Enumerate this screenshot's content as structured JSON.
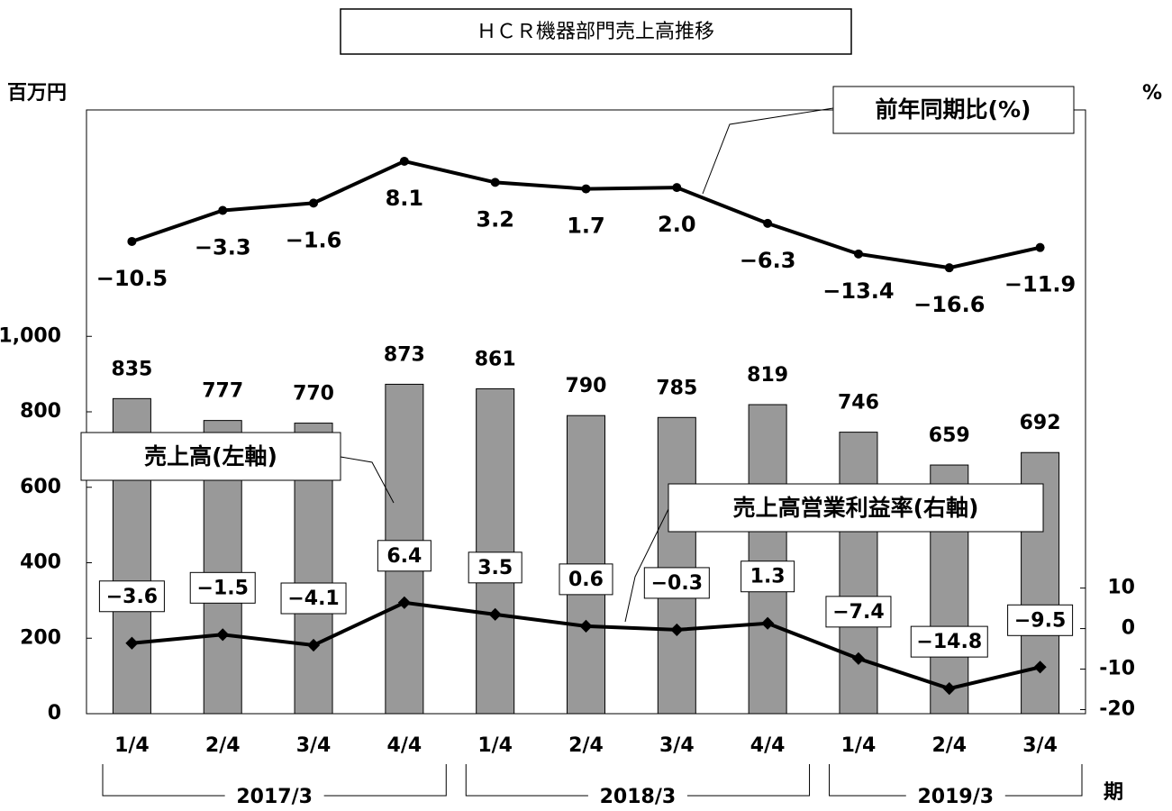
{
  "chart_data": {
    "type": "bar-line",
    "title": "ＨＣＲ機器部門売上高推移",
    "y_label": "百万円",
    "y2_label": "%",
    "x_label": "期",
    "categories": [
      "1/4",
      "2/4",
      "3/4",
      "4/4",
      "1/4",
      "2/4",
      "3/4",
      "4/4",
      "1/4",
      "2/4",
      "3/4"
    ],
    "groups": [
      {
        "label": "2017/3",
        "count": 4
      },
      {
        "label": "2018/3",
        "count": 4
      },
      {
        "label": "2019/3",
        "count": 3
      }
    ],
    "series": [
      {
        "name": "売上高(左軸)",
        "type": "bar",
        "color": "#999999",
        "axis": "y",
        "values": [
          835,
          777,
          770,
          873,
          861,
          790,
          785,
          819,
          746,
          659,
          692
        ]
      },
      {
        "name": "前年同期比(%)",
        "type": "line",
        "color": "#000000",
        "axis": "y3",
        "values": [
          -10.5,
          -3.3,
          -1.6,
          8.1,
          3.2,
          1.7,
          2.0,
          -6.3,
          -13.4,
          -16.6,
          -11.9
        ],
        "value_labels": [
          "−10.5",
          "−3.3",
          "−1.6",
          "8.1",
          "3.2",
          "1.7",
          "2.0",
          "−6.3",
          "−13.4",
          "−16.6",
          "−11.9"
        ]
      },
      {
        "name": "売上高営業利益率(右軸)",
        "type": "line",
        "color": "#000000",
        "axis": "y2",
        "values": [
          -3.6,
          -1.5,
          -4.1,
          6.4,
          3.5,
          0.6,
          -0.3,
          1.3,
          -7.4,
          -14.8,
          -9.5
        ],
        "value_labels": [
          "−3.6",
          "−1.5",
          "−4.1",
          "6.4",
          "3.5",
          "0.6",
          "−0.3",
          "1.3",
          "−7.4",
          "−14.8",
          "−9.5"
        ]
      }
    ],
    "ylim": [
      0,
      1600
    ],
    "yticks": [
      0,
      200,
      400,
      600,
      800,
      {
        "value": 1000,
        "label": "1,000"
      }
    ],
    "y2lim": [
      -21,
      128
    ],
    "y2ticks": [
      -20,
      -10,
      0,
      10
    ],
    "y3lim": [
      -120,
      20
    ]
  }
}
